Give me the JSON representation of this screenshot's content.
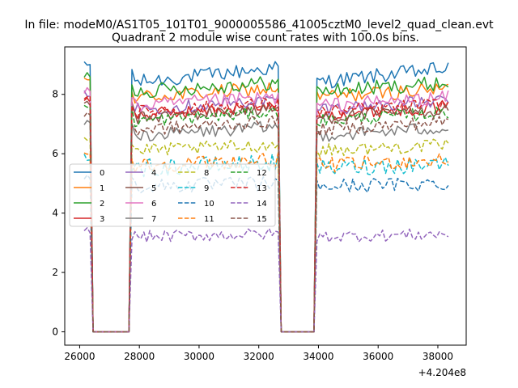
{
  "figure": {
    "suptitle": "In file: modeM0/AS1T05_101T01_9000005586_41005cztM0_level2_quad_clean.evt",
    "title": "Quadrant 2 module wise count rates with 100.0s bins."
  },
  "chart_data": {
    "type": "line",
    "title": "Quadrant 2 module wise count rates with 100.0s bins.",
    "xlabel": "",
    "ylabel": "",
    "x_offset_label": "+4.204e8",
    "xlim": [
      25500,
      38950
    ],
    "ylim": [
      -0.45,
      9.6
    ],
    "xticks": [
      26000,
      28000,
      30000,
      32000,
      34000,
      36000,
      38000
    ],
    "yticks": [
      0,
      2,
      4,
      6,
      8
    ],
    "grid": false,
    "legend": {
      "placement": "center-left",
      "columns": 4
    },
    "segments": [
      {
        "x_start": 26150,
        "x_end": 26350
      },
      {
        "x_start": 26450,
        "x_end": 27650
      },
      {
        "x_start": 27750,
        "x_end": 32650
      },
      {
        "x_start": 32750,
        "x_end": 33850
      },
      {
        "x_start": 33950,
        "x_end": 38350
      }
    ],
    "gap_value": 0,
    "series": [
      {
        "name": "0",
        "color": "#1f77b4",
        "dash": "solid",
        "level": 8.4,
        "noise": 0.25,
        "trend": 0.5
      },
      {
        "name": "1",
        "color": "#ff7f0e",
        "dash": "solid",
        "level": 7.9,
        "noise": 0.25,
        "trend": 0.3
      },
      {
        "name": "2",
        "color": "#2ca02c",
        "dash": "solid",
        "level": 8.1,
        "noise": 0.25,
        "trend": 0.3
      },
      {
        "name": "3",
        "color": "#d62728",
        "dash": "solid",
        "level": 7.3,
        "noise": 0.22,
        "trend": 0.3
      },
      {
        "name": "4",
        "color": "#9467bd",
        "dash": "solid",
        "level": 7.5,
        "noise": 0.22,
        "trend": 0.3
      },
      {
        "name": "5",
        "color": "#8c564b",
        "dash": "solid",
        "level": 7.2,
        "noise": 0.22,
        "trend": 0.3
      },
      {
        "name": "6",
        "color": "#e377c2",
        "dash": "solid",
        "level": 7.6,
        "noise": 0.25,
        "trend": 0.3
      },
      {
        "name": "7",
        "color": "#7f7f7f",
        "dash": "solid",
        "level": 6.6,
        "noise": 0.22,
        "trend": 0.3
      },
      {
        "name": "8",
        "color": "#bcbd22",
        "dash": "dashed",
        "level": 6.1,
        "noise": 0.22,
        "trend": 0.2
      },
      {
        "name": "9",
        "color": "#17becf",
        "dash": "dashed",
        "level": 5.5,
        "noise": 0.3,
        "trend": 0.2
      },
      {
        "name": "10",
        "color": "#1f77b4",
        "dash": "dashed",
        "level": 4.9,
        "noise": 0.25,
        "trend": 0.1
      },
      {
        "name": "11",
        "color": "#ff7f0e",
        "dash": "dashed",
        "level": 5.6,
        "noise": 0.25,
        "trend": 0.2
      },
      {
        "name": "12",
        "color": "#2ca02c",
        "dash": "dashed",
        "level": 7.1,
        "noise": 0.22,
        "trend": 0.3
      },
      {
        "name": "13",
        "color": "#d62728",
        "dash": "dashed",
        "level": 7.4,
        "noise": 0.22,
        "trend": 0.3
      },
      {
        "name": "14",
        "color": "#9467bd",
        "dash": "dashed",
        "level": 3.2,
        "noise": 0.2,
        "trend": 0.1
      },
      {
        "name": "15",
        "color": "#8c564b",
        "dash": "dashed",
        "level": 6.8,
        "noise": 0.22,
        "trend": 0.3
      }
    ]
  }
}
